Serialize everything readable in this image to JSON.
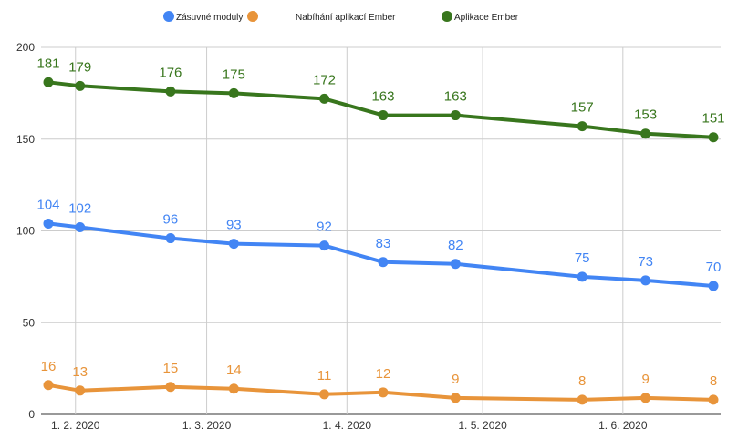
{
  "chart_data": {
    "type": "line",
    "x": [
      "2020-01-26",
      "2020-02-02",
      "2020-02-22",
      "2020-03-07",
      "2020-03-27",
      "2020-04-09",
      "2020-04-25",
      "2020-05-23",
      "2020-06-06",
      "2020-06-21"
    ],
    "x_tick_labels": [
      "1. 2. 2020",
      "1. 3. 2020",
      "1. 4. 2020",
      "1. 5. 2020",
      "1. 6. 2020"
    ],
    "x_tick_dates": [
      "2020-02-01",
      "2020-03-01",
      "2020-04-01",
      "2020-05-01",
      "2020-06-01"
    ],
    "y_ticks": [
      0,
      50,
      100,
      150,
      200
    ],
    "ylim": [
      0,
      200
    ],
    "grid": true,
    "legend_position": "top",
    "data_labels": true,
    "series": [
      {
        "name": "Zásuvné moduly",
        "color": "#4285f4",
        "values": [
          104,
          102,
          96,
          93,
          92,
          83,
          82,
          75,
          73,
          70
        ]
      },
      {
        "name": "Nabíhání aplikací Ember",
        "color": "#e8943a",
        "values": [
          16,
          13,
          15,
          14,
          11,
          12,
          9,
          8,
          9,
          8
        ]
      },
      {
        "name": "Aplikace Ember",
        "color": "#38761d",
        "values": [
          181,
          179,
          176,
          175,
          172,
          163,
          163,
          157,
          153,
          151
        ]
      }
    ]
  }
}
